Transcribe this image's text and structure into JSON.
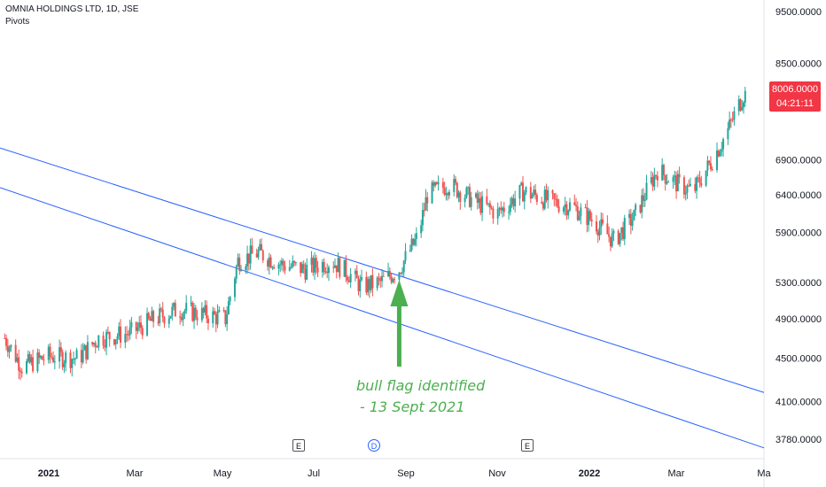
{
  "header": {
    "symbol": "OMNIA HOLDINGS LTD, 1D, JSE",
    "indicator": "Pivots"
  },
  "price_tag": {
    "price": "8006.0000",
    "countdown": "04:21:11",
    "color": "#f23645"
  },
  "annotation": {
    "line1": "bull flag identified",
    "line2": "- 13 Sept 2021",
    "color": "#4caf50"
  },
  "events": [
    {
      "label": "E",
      "icon": "earnings-icon"
    },
    {
      "label": "D",
      "icon": "dividend-icon"
    },
    {
      "label": "E",
      "icon": "earnings-icon"
    }
  ],
  "colors": {
    "up": "#26a69a",
    "down": "#ef5350",
    "trendline": "#2962ff",
    "arrow": "#4caf50"
  },
  "chart_data": {
    "type": "candlestick",
    "title": "OMNIA HOLDINGS LTD, 1D, JSE",
    "y_ticks": [
      "9500.0000",
      "8500.0000",
      "6900.0000",
      "6400.0000",
      "5900.0000",
      "5300.0000",
      "4900.0000",
      "4500.0000",
      "4100.0000",
      "3780.0000"
    ],
    "y_scale": "log",
    "x_ticks": [
      "2021",
      "Mar",
      "May",
      "Jul",
      "Sep",
      "Nov",
      "2022",
      "Mar",
      "Ma"
    ],
    "x_range": [
      "2021-01-01",
      "2022-05-04"
    ],
    "price_path": [
      [
        "2021-01-04",
        4700
      ],
      [
        "2021-01-15",
        4420
      ],
      [
        "2021-02-01",
        4520
      ],
      [
        "2021-02-20",
        4500
      ],
      [
        "2021-03-05",
        4700
      ],
      [
        "2021-03-25",
        4750
      ],
      [
        "2021-04-10",
        4900
      ],
      [
        "2021-04-25",
        5000
      ],
      [
        "2021-05-10",
        4950
      ],
      [
        "2021-05-25",
        4900
      ],
      [
        "2021-06-02",
        5550
      ],
      [
        "2021-06-15",
        5650
      ],
      [
        "2021-07-01",
        5500
      ],
      [
        "2021-07-15",
        5450
      ],
      [
        "2021-08-01",
        5550
      ],
      [
        "2021-08-12",
        5400
      ],
      [
        "2021-08-20",
        5250
      ],
      [
        "2021-09-01",
        5300
      ],
      [
        "2021-09-13",
        5450
      ],
      [
        "2021-09-25",
        5850
      ],
      [
        "2021-10-01",
        6400
      ],
      [
        "2021-10-15",
        6550
      ],
      [
        "2021-11-01",
        6300
      ],
      [
        "2021-11-15",
        6150
      ],
      [
        "2021-12-01",
        6450
      ],
      [
        "2021-12-20",
        6300
      ],
      [
        "2022-01-01",
        6250
      ],
      [
        "2022-01-15",
        6050
      ],
      [
        "2022-01-28",
        5800
      ],
      [
        "2022-02-10",
        6100
      ],
      [
        "2022-02-25",
        6750
      ],
      [
        "2022-03-10",
        6550
      ],
      [
        "2022-03-20",
        6450
      ],
      [
        "2022-04-01",
        6900
      ],
      [
        "2022-04-10",
        7300
      ],
      [
        "2022-04-22",
        8006
      ]
    ],
    "trendlines": [
      {
        "name": "",
        "points": [
          [
            "2021-01-01",
            7080
          ],
          [
            "2022-05-04",
            4180
          ]
        ]
      },
      {
        "name": "",
        "points": [
          [
            "2021-01-01",
            6500
          ],
          [
            "2022-05-04",
            3710
          ]
        ]
      }
    ],
    "last_price": 8006,
    "grid": false,
    "legend": "none"
  }
}
